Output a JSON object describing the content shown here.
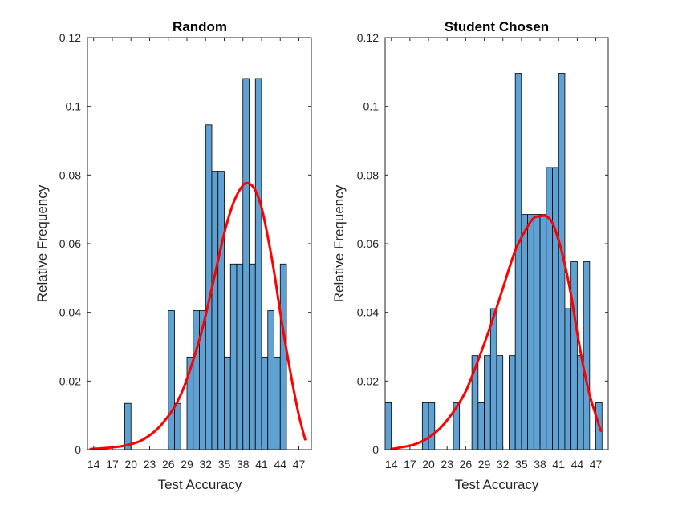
{
  "chart_data": [
    {
      "type": "bar",
      "title": "Random",
      "xlabel": "Test Accuracy",
      "ylabel": "Relative Frequency",
      "xlim": [
        13,
        49
      ],
      "ylim": [
        0,
        0.12
      ],
      "xticks": [
        14,
        17,
        20,
        23,
        26,
        29,
        32,
        35,
        38,
        41,
        44,
        47
      ],
      "yticks": [
        0,
        0.02,
        0.04,
        0.06,
        0.08,
        0.1,
        0.12
      ],
      "ytick_labels": [
        "0",
        "0.02",
        "0.04",
        "0.06",
        "0.08",
        "0.1",
        "0.12"
      ],
      "bin_width": 1,
      "bins": [
        {
          "x": 19,
          "value": 0.0135
        },
        {
          "x": 26,
          "value": 0.0405
        },
        {
          "x": 27,
          "value": 0.0135
        },
        {
          "x": 29,
          "value": 0.027
        },
        {
          "x": 30,
          "value": 0.0405
        },
        {
          "x": 31,
          "value": 0.0405
        },
        {
          "x": 32,
          "value": 0.0946
        },
        {
          "x": 33,
          "value": 0.0811
        },
        {
          "x": 34,
          "value": 0.0811
        },
        {
          "x": 35,
          "value": 0.027
        },
        {
          "x": 36,
          "value": 0.0541
        },
        {
          "x": 37,
          "value": 0.0541
        },
        {
          "x": 38,
          "value": 0.1081
        },
        {
          "x": 39,
          "value": 0.0541
        },
        {
          "x": 40,
          "value": 0.1081
        },
        {
          "x": 41,
          "value": 0.027
        },
        {
          "x": 42,
          "value": 0.0405
        },
        {
          "x": 43,
          "value": 0.027
        },
        {
          "x": 44,
          "value": 0.0541
        }
      ],
      "fit_curve": {
        "x": [
          13.5,
          16,
          19,
          22,
          25,
          28,
          31,
          33,
          35,
          36.5,
          38,
          39,
          40,
          41,
          42,
          43,
          44,
          45,
          46,
          47,
          48
        ],
        "y": [
          0.0002,
          0.0005,
          0.0012,
          0.003,
          0.0075,
          0.016,
          0.032,
          0.047,
          0.063,
          0.072,
          0.077,
          0.0775,
          0.0755,
          0.0705,
          0.062,
          0.052,
          0.04,
          0.029,
          0.019,
          0.01,
          0.003
        ]
      },
      "colors": {
        "bar_fill": "#5fa1d3",
        "bar_edge": "#000000",
        "curve": "#ff0000"
      }
    },
    {
      "type": "bar",
      "title": "Student Chosen",
      "xlabel": "Test Accuracy",
      "ylabel": "Relative Frequency",
      "xlim": [
        13,
        49
      ],
      "ylim": [
        0,
        0.12
      ],
      "xticks": [
        14,
        17,
        20,
        23,
        26,
        29,
        32,
        35,
        38,
        41,
        44,
        47
      ],
      "yticks": [
        0,
        0.02,
        0.04,
        0.06,
        0.08,
        0.1,
        0.12
      ],
      "ytick_labels": [
        "0",
        "0.02",
        "0.04",
        "0.06",
        "0.08",
        "0.1",
        "0.12"
      ],
      "bin_width": 1,
      "bins": [
        {
          "x": 13,
          "value": 0.0137
        },
        {
          "x": 19,
          "value": 0.0137
        },
        {
          "x": 20,
          "value": 0.0137
        },
        {
          "x": 24,
          "value": 0.0137
        },
        {
          "x": 27,
          "value": 0.0274
        },
        {
          "x": 28,
          "value": 0.0137
        },
        {
          "x": 29,
          "value": 0.0274
        },
        {
          "x": 30,
          "value": 0.0411
        },
        {
          "x": 31,
          "value": 0.0274
        },
        {
          "x": 33,
          "value": 0.0274
        },
        {
          "x": 34,
          "value": 0.1096
        },
        {
          "x": 35,
          "value": 0.0685
        },
        {
          "x": 36,
          "value": 0.0685
        },
        {
          "x": 37,
          "value": 0.0685
        },
        {
          "x": 38,
          "value": 0.0685
        },
        {
          "x": 39,
          "value": 0.0822
        },
        {
          "x": 40,
          "value": 0.0822
        },
        {
          "x": 41,
          "value": 0.1096
        },
        {
          "x": 42,
          "value": 0.0411
        },
        {
          "x": 43,
          "value": 0.0548
        },
        {
          "x": 44,
          "value": 0.0274
        },
        {
          "x": 45,
          "value": 0.0548
        },
        {
          "x": 47,
          "value": 0.0137
        }
      ],
      "fit_curve": {
        "x": [
          14,
          16,
          18,
          20,
          22,
          24,
          26,
          28,
          30,
          32,
          34,
          36,
          37,
          38,
          39,
          40,
          41,
          42,
          43,
          44,
          45,
          46,
          47,
          47.8
        ],
        "y": [
          0.0002,
          0.0008,
          0.0017,
          0.0035,
          0.0065,
          0.011,
          0.017,
          0.026,
          0.036,
          0.047,
          0.058,
          0.065,
          0.0675,
          0.068,
          0.068,
          0.066,
          0.061,
          0.054,
          0.045,
          0.034,
          0.024,
          0.016,
          0.01,
          0.0055
        ]
      },
      "colors": {
        "bar_fill": "#5fa1d3",
        "bar_edge": "#000000",
        "curve": "#ff0000"
      }
    }
  ]
}
